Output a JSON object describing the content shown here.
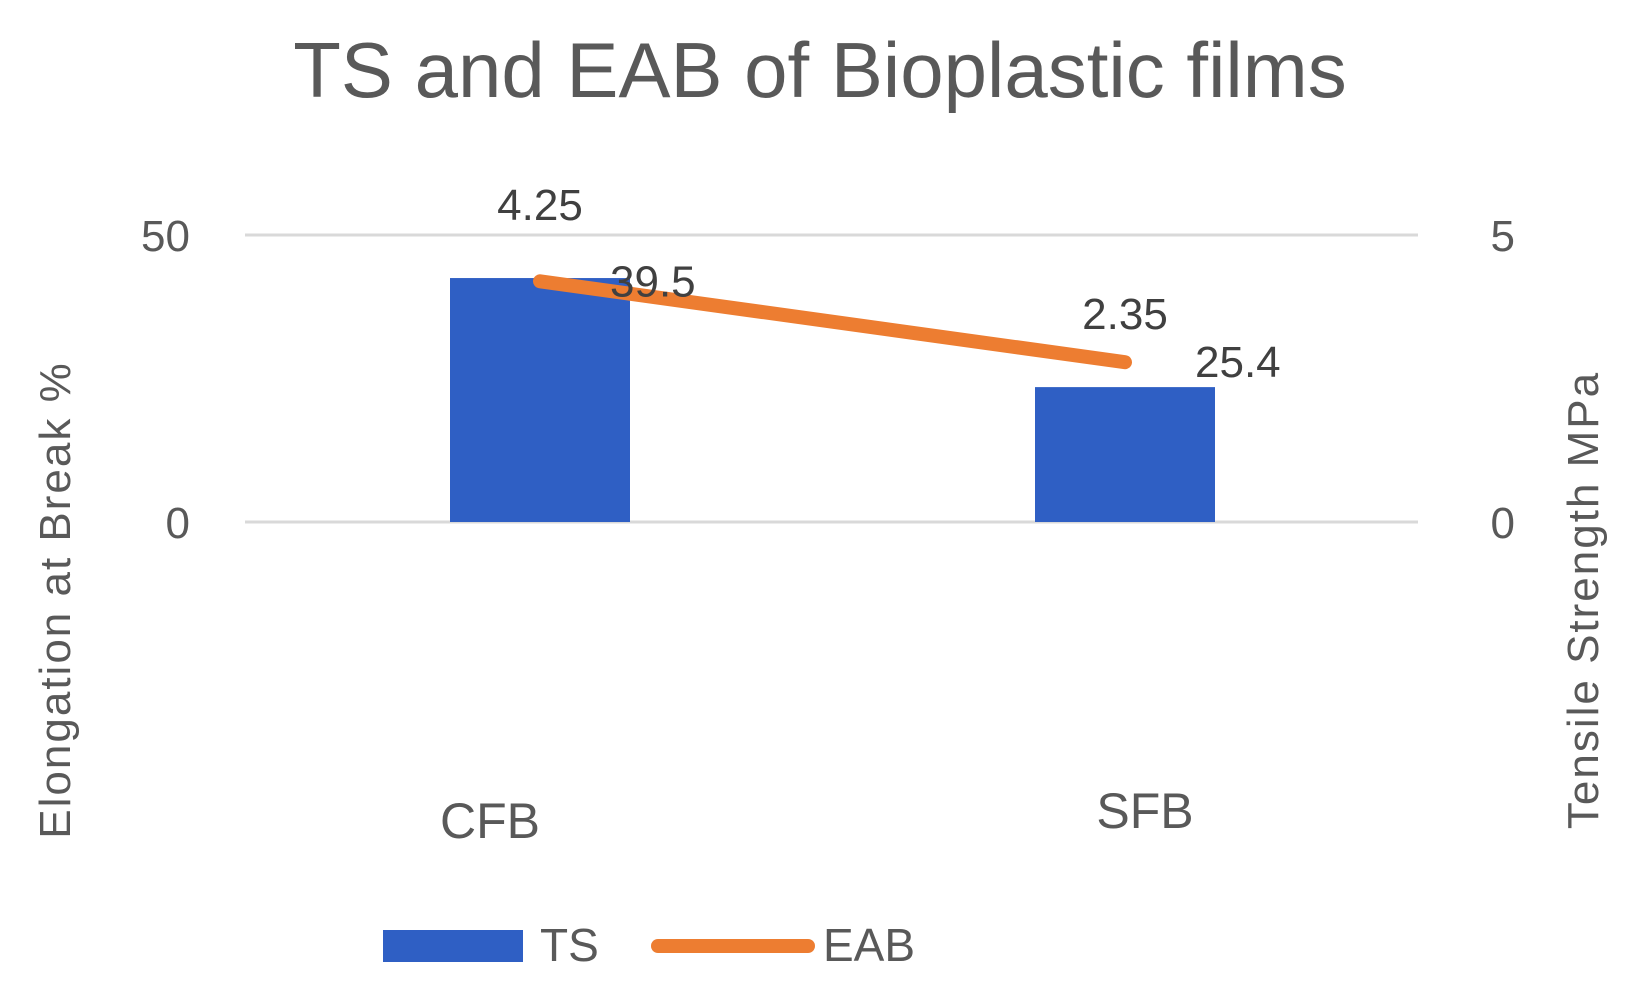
{
  "chart_data": {
    "type": "bar",
    "title": "TS and EAB of Bioplastic films",
    "categories": [
      "CFB",
      "SFB"
    ],
    "series": [
      {
        "name": "TS",
        "type": "bar",
        "axis": "secondary",
        "values": [
          4.25,
          2.35
        ],
        "labels": [
          "4.25",
          "2.35"
        ],
        "color": "#2F5FC4"
      },
      {
        "name": "EAB",
        "type": "line",
        "axis": "primary",
        "values": [
          39.5,
          25.4
        ],
        "labels": [
          "39.5",
          "25.4"
        ],
        "color": "#ED7D31"
      }
    ],
    "ylabel": "Elongation at Break %",
    "y2label": "Tensile Strength  MPa",
    "ylim": [
      0,
      50
    ],
    "y2lim": [
      0,
      5
    ],
    "yticks": [
      "0",
      "50"
    ],
    "y2ticks": [
      "0",
      "5"
    ],
    "grid": true,
    "legend": "bottom"
  }
}
